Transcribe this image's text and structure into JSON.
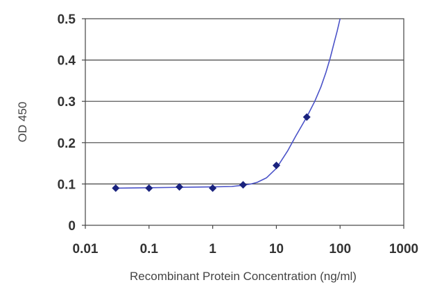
{
  "chart_data": {
    "type": "scatter",
    "title": "",
    "xlabel": "Recombinant Protein Concentration (ng/ml)",
    "ylabel": "OD 450",
    "x_scale": "log",
    "xlim": [
      0.01,
      1000
    ],
    "ylim": [
      0,
      0.5
    ],
    "x_ticks": [
      0.01,
      0.1,
      1,
      10,
      100,
      1000
    ],
    "x_tick_labels": [
      "0.01",
      "0.1",
      "1",
      "10",
      "100",
      "1000"
    ],
    "y_ticks": [
      0,
      0.1,
      0.2,
      0.3,
      0.4,
      0.5
    ],
    "y_tick_labels": [
      "0",
      "0.1",
      "0.2",
      "0.3",
      "0.4",
      "0.5"
    ],
    "grid": "horizontal",
    "legend": "none",
    "series": [
      {
        "color": "#1a237e",
        "x": [
          0.03,
          0.1,
          0.3,
          1,
          3,
          10,
          30
        ],
        "y": [
          0.09,
          0.09,
          0.093,
          0.09,
          0.098,
          0.145,
          0.262
        ]
      }
    ],
    "fit_curve": {
      "color": "#4a52c8",
      "x": [
        0.03,
        0.1,
        0.3,
        1,
        2,
        3,
        4,
        5,
        7,
        10,
        15,
        20,
        30,
        40,
        50,
        60,
        70,
        80,
        90,
        100
      ],
      "y": [
        0.09,
        0.091,
        0.092,
        0.093,
        0.094,
        0.097,
        0.1,
        0.104,
        0.115,
        0.138,
        0.18,
        0.215,
        0.262,
        0.3,
        0.335,
        0.37,
        0.405,
        0.44,
        0.47,
        0.5
      ]
    }
  }
}
